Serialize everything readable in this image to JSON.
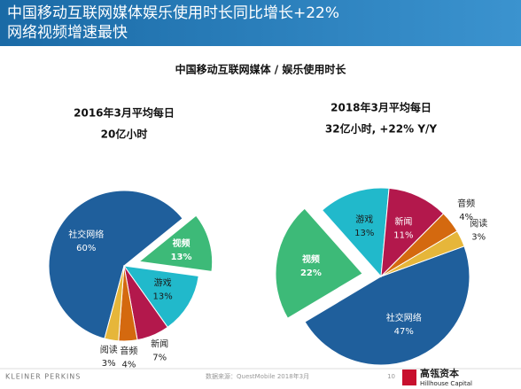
{
  "header": {
    "title_line1": "中国移动互联网媒体娱乐使用时长同比增长+22%",
    "title_line2": "网络视频增速最快"
  },
  "heading": "中国移动互联网媒体 / 娱乐使用时长",
  "chart_data": [
    {
      "type": "pie",
      "title": "2016年3月平均每日",
      "subtitle": "20亿小时",
      "categories": [
        "社交网络",
        "视频",
        "游戏",
        "新闻",
        "音频",
        "阅读"
      ],
      "values": [
        60,
        13,
        13,
        7,
        4,
        3
      ],
      "value_labels": [
        "60%",
        "13%",
        "13%",
        "7%",
        "4%",
        "3%"
      ],
      "colors": [
        "#1f5f9c",
        "#3dba78",
        "#21b9cb",
        "#b3184c",
        "#d4690f",
        "#e6b63a"
      ]
    },
    {
      "type": "pie",
      "title": "2018年3月平均每日",
      "subtitle": "32亿小时, +22% Y/Y",
      "categories": [
        "社交网络",
        "视频",
        "游戏",
        "新闻",
        "音频",
        "阅读"
      ],
      "values": [
        47,
        22,
        13,
        11,
        4,
        3
      ],
      "value_labels": [
        "47%",
        "22%",
        "13%",
        "11%",
        "4%",
        "3%"
      ],
      "colors": [
        "#1f5f9c",
        "#3dba78",
        "#21b9cb",
        "#b3184c",
        "#d4690f",
        "#e6b63a"
      ]
    }
  ],
  "footer": {
    "left": "KLEINER PERKINS",
    "source": "数据来源：QuestMobile    2018年3月",
    "page": "10",
    "brand": "高瓴资本",
    "brand_en": "Hillhouse Capital"
  }
}
